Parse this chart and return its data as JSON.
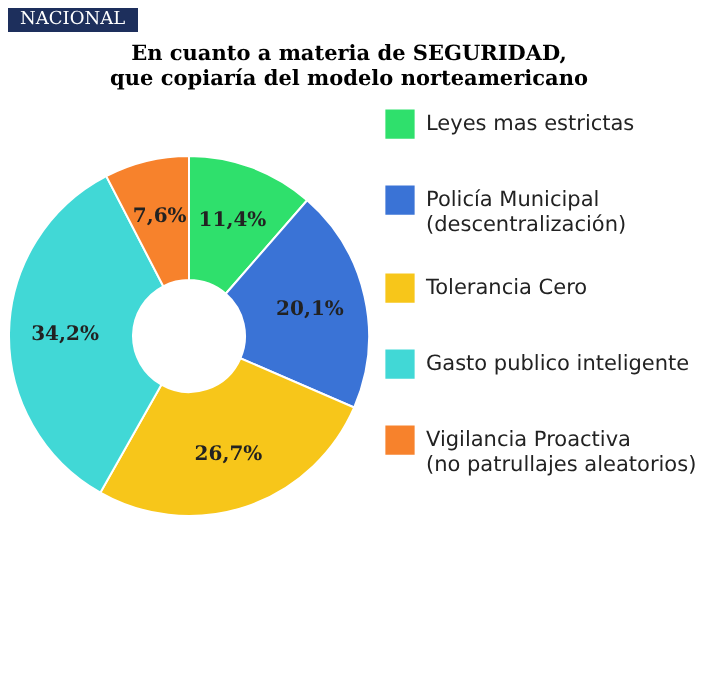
{
  "chart_data": {
    "type": "donut",
    "title": "En cuanto a materia de SEGURIDAD, que copiaría del modelo norteamericano",
    "annotations": [
      "NACIONAL"
    ],
    "categories": [
      "Leyes mas estrictas",
      "Policía Municipal (descentralización)",
      "Tolerancia Cero",
      "Gasto publico inteligente",
      "Vigilancia Proactiva (no patrullajes aleatorios)"
    ],
    "values": [
      11.4,
      20.1,
      26.7,
      34.2,
      7.6
    ],
    "value_labels": [
      "11,4%",
      "20,1%",
      "26,7%",
      "34,2%",
      "7,6%"
    ],
    "colors": [
      "#2fe06c",
      "#3a73d6",
      "#f7c61a",
      "#41d8d6",
      "#f7822c"
    ],
    "legend": "right"
  }
}
